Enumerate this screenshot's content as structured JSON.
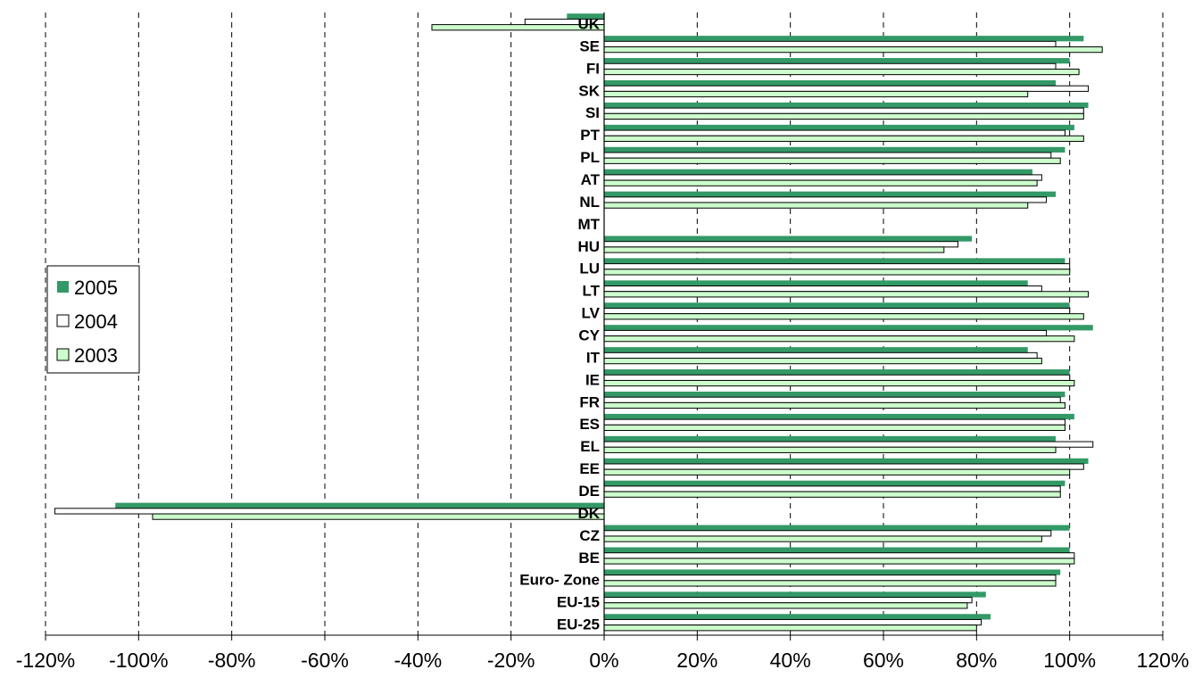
{
  "chart_data": {
    "type": "bar",
    "orientation": "horizontal",
    "categories": [
      "UK",
      "SE",
      "FI",
      "SK",
      "SI",
      "PT",
      "PL",
      "AT",
      "NL",
      "MT",
      "HU",
      "LU",
      "LT",
      "LV",
      "CY",
      "IT",
      "IE",
      "FR",
      "ES",
      "EL",
      "EE",
      "DE",
      "DK",
      "CZ",
      "BE",
      "Euro- Zone",
      "EU-15",
      "EU-25"
    ],
    "series": [
      {
        "name": "2005",
        "color": "#339966",
        "values": [
          -8,
          103,
          100,
          97,
          104,
          101,
          99,
          92,
          97,
          null,
          79,
          99,
          91,
          100,
          105,
          91,
          100,
          99,
          101,
          97,
          104,
          99,
          -105,
          100,
          100,
          98,
          82,
          83
        ]
      },
      {
        "name": "2004",
        "color": "#ffffff",
        "values": [
          -17,
          97,
          97,
          104,
          103,
          99,
          96,
          94,
          95,
          null,
          76,
          100,
          94,
          100,
          95,
          93,
          100,
          98,
          99,
          105,
          103,
          98,
          -118,
          96,
          101,
          97,
          79,
          81
        ]
      },
      {
        "name": "2003",
        "color": "#ccffcc",
        "values": [
          -37,
          107,
          102,
          91,
          103,
          103,
          98,
          93,
          91,
          null,
          73,
          100,
          104,
          103,
          101,
          94,
          101,
          99,
          99,
          97,
          100,
          98,
          -97,
          94,
          101,
          97,
          78,
          80
        ]
      }
    ],
    "xlim": [
      -120,
      120
    ],
    "x_ticks": [
      "-120%",
      "-100%",
      "-80%",
      "-60%",
      "-40%",
      "-20%",
      "0%",
      "20%",
      "40%",
      "60%",
      "80%",
      "100%",
      "120%"
    ],
    "grid": "vertical dashed",
    "legend_position": "left",
    "title": "",
    "xlabel": "",
    "ylabel": ""
  }
}
